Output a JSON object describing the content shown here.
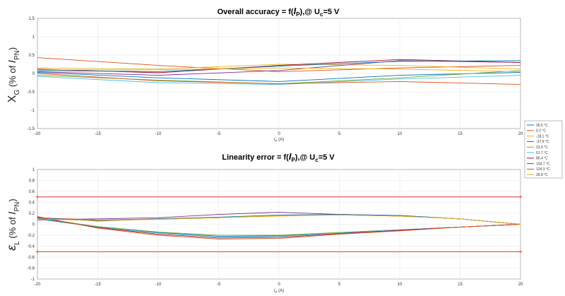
{
  "chart_data": [
    {
      "type": "line",
      "title_parts": [
        "Overall accuracy = f(",
        "I",
        "P",
        "),@ U",
        "c",
        "=5 V"
      ],
      "ylabel_parts": [
        "X",
        "G",
        " (% of ",
        "I",
        "PN",
        ")"
      ],
      "xlabel_parts": [
        "I",
        "P",
        " (A)"
      ],
      "xlim": [
        -20,
        20
      ],
      "ylim": [
        -1.5,
        1.5
      ],
      "xticks": [
        -20,
        -15,
        -10,
        -5,
        0,
        5,
        10,
        15,
        20
      ],
      "xtick_labels": [
        "-20",
        "-15",
        "-10",
        "-5",
        "0",
        "5",
        "10",
        "15",
        "20"
      ],
      "yticks": [
        -1.5,
        -1,
        -0.5,
        0,
        0.5,
        1,
        1.5
      ],
      "ytick_labels": [
        "-1.5",
        "-1",
        "-0.5",
        "0",
        "0.5",
        "1",
        "1.5"
      ],
      "grid": true,
      "x": [
        -20,
        -10,
        0,
        10,
        20
      ],
      "series": [
        {
          "name": "26.5 °C",
          "color": "#0072bd",
          "values": [
            0.03,
            -0.12,
            -0.22,
            -0.05,
            0.03
          ]
        },
        {
          "name": "0.2 °C",
          "color": "#d95319",
          "values": [
            0.43,
            0.22,
            0.05,
            0.15,
            0.22
          ]
        },
        {
          "name": "-18.1 °C",
          "color": "#edb120",
          "values": [
            0.15,
            0.12,
            0.25,
            0.22,
            0.12
          ]
        },
        {
          "name": "-37.9 °C",
          "color": "#7e2f8e",
          "values": [
            0.05,
            -0.05,
            0.08,
            0.35,
            0.3
          ]
        },
        {
          "name": "23.6 °C",
          "color": "#77ac30",
          "values": [
            -0.05,
            -0.18,
            -0.28,
            -0.12,
            0.08
          ]
        },
        {
          "name": "51.7 °C",
          "color": "#4dbeee",
          "values": [
            -0.08,
            -0.25,
            -0.3,
            -0.15,
            -0.05
          ]
        },
        {
          "name": "85.4 °C",
          "color": "#a2142f",
          "values": [
            0.12,
            0.02,
            0.22,
            0.38,
            0.3
          ]
        },
        {
          "name": "104.7 °C",
          "color": "#0072bd",
          "values": [
            0.08,
            0.05,
            0.2,
            0.33,
            0.35
          ]
        },
        {
          "name": "124.3 °C",
          "color": "#d95319",
          "values": [
            0.0,
            -0.2,
            -0.28,
            -0.22,
            -0.3
          ]
        },
        {
          "name": "26.8 °C",
          "color": "#edb120",
          "values": [
            0.1,
            0.1,
            0.15,
            0.12,
            0.05
          ]
        }
      ]
    },
    {
      "type": "line",
      "title_parts": [
        "Linearity error = f(",
        "I",
        "P",
        "),@ U",
        "c",
        "=5 V"
      ],
      "ylabel_parts": [
        "ε",
        "L",
        " (% of ",
        "I",
        "PN",
        ")"
      ],
      "xlabel_parts": [
        "I",
        "P",
        " (A)"
      ],
      "xlim": [
        -20,
        20
      ],
      "ylim": [
        -1,
        1
      ],
      "xticks": [
        -20,
        -15,
        -10,
        -5,
        0,
        5,
        10,
        15,
        20
      ],
      "xtick_labels": [
        "-20",
        "-15",
        "-10",
        "-5",
        "0",
        "5",
        "10",
        "15",
        "20"
      ],
      "yticks": [
        -1,
        -0.8,
        -0.6,
        -0.4,
        -0.2,
        0,
        0.2,
        0.4,
        0.6,
        0.8,
        1
      ],
      "ytick_labels": [
        "-1",
        "-0.8",
        "-0.6",
        "-0.4",
        "-0.2",
        "0",
        "0.2",
        "0.4",
        "0.6",
        "0.8",
        "1"
      ],
      "grid": true,
      "limit_lines": [
        {
          "y": 0.5,
          "color": "#e03030",
          "x": [
            -20,
            20
          ]
        },
        {
          "y": -0.5,
          "color": "#e03030",
          "x": [
            -20,
            20
          ]
        }
      ],
      "x": [
        -20,
        -15,
        -10,
        -5,
        0,
        5,
        10,
        15,
        20
      ],
      "series": [
        {
          "name": "26.5 °C",
          "color": "#0072bd",
          "values": [
            0.1,
            -0.05,
            -0.15,
            -0.22,
            -0.21,
            -0.15,
            -0.1,
            -0.05,
            0.0
          ]
        },
        {
          "name": "0.2 °C",
          "color": "#d95319",
          "values": [
            0.12,
            0.08,
            0.1,
            0.12,
            0.16,
            0.17,
            0.15,
            0.1,
            0.0
          ]
        },
        {
          "name": "-18.1 °C",
          "color": "#edb120",
          "values": [
            0.1,
            0.07,
            0.09,
            0.12,
            0.15,
            0.17,
            0.15,
            0.1,
            0.0
          ]
        },
        {
          "name": "-37.9 °C",
          "color": "#7e2f8e",
          "values": [
            0.08,
            0.1,
            0.12,
            0.18,
            0.22,
            0.18,
            0.16,
            0.1,
            0.0
          ]
        },
        {
          "name": "23.6 °C",
          "color": "#77ac30",
          "values": [
            0.11,
            -0.04,
            -0.14,
            -0.2,
            -0.2,
            -0.15,
            -0.1,
            -0.05,
            0.0
          ]
        },
        {
          "name": "51.7 °C",
          "color": "#4dbeee",
          "values": [
            0.12,
            -0.05,
            -0.16,
            -0.23,
            -0.22,
            -0.16,
            -0.1,
            -0.05,
            0.0
          ]
        },
        {
          "name": "85.4 °C",
          "color": "#a2142f",
          "values": [
            0.13,
            -0.06,
            -0.18,
            -0.25,
            -0.24,
            -0.17,
            -0.11,
            -0.05,
            0.0
          ]
        },
        {
          "name": "104.7 °C",
          "color": "#0072bd",
          "values": [
            0.12,
            0.06,
            0.1,
            0.13,
            0.17,
            0.18,
            0.16,
            0.1,
            0.0
          ]
        },
        {
          "name": "124.3 °C",
          "color": "#d95319",
          "values": [
            0.14,
            -0.07,
            -0.2,
            -0.27,
            -0.26,
            -0.18,
            -0.12,
            -0.05,
            0.0
          ]
        },
        {
          "name": "26.8 °C",
          "color": "#edb120",
          "values": [
            0.1,
            0.07,
            0.09,
            0.12,
            0.16,
            0.17,
            0.15,
            0.1,
            0.0
          ]
        }
      ]
    }
  ]
}
